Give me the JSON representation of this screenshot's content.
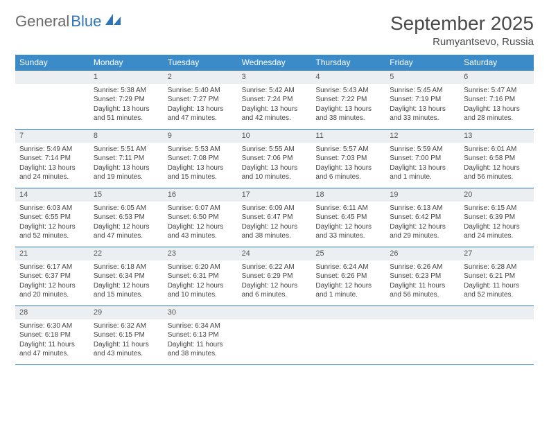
{
  "logo": {
    "general": "General",
    "blue": "Blue"
  },
  "title": "September 2025",
  "location": "Rumyantsevo, Russia",
  "colors": {
    "header_bg": "#3b8bc9",
    "grid_border": "#2f75b5",
    "daynum_bg": "#eceff2",
    "text": "#444444"
  },
  "weekdays": [
    "Sunday",
    "Monday",
    "Tuesday",
    "Wednesday",
    "Thursday",
    "Friday",
    "Saturday"
  ],
  "weeks": [
    [
      null,
      {
        "n": "1",
        "sr": "Sunrise: 5:38 AM",
        "ss": "Sunset: 7:29 PM",
        "dl": "Daylight: 13 hours and 51 minutes."
      },
      {
        "n": "2",
        "sr": "Sunrise: 5:40 AM",
        "ss": "Sunset: 7:27 PM",
        "dl": "Daylight: 13 hours and 47 minutes."
      },
      {
        "n": "3",
        "sr": "Sunrise: 5:42 AM",
        "ss": "Sunset: 7:24 PM",
        "dl": "Daylight: 13 hours and 42 minutes."
      },
      {
        "n": "4",
        "sr": "Sunrise: 5:43 AM",
        "ss": "Sunset: 7:22 PM",
        "dl": "Daylight: 13 hours and 38 minutes."
      },
      {
        "n": "5",
        "sr": "Sunrise: 5:45 AM",
        "ss": "Sunset: 7:19 PM",
        "dl": "Daylight: 13 hours and 33 minutes."
      },
      {
        "n": "6",
        "sr": "Sunrise: 5:47 AM",
        "ss": "Sunset: 7:16 PM",
        "dl": "Daylight: 13 hours and 28 minutes."
      }
    ],
    [
      {
        "n": "7",
        "sr": "Sunrise: 5:49 AM",
        "ss": "Sunset: 7:14 PM",
        "dl": "Daylight: 13 hours and 24 minutes."
      },
      {
        "n": "8",
        "sr": "Sunrise: 5:51 AM",
        "ss": "Sunset: 7:11 PM",
        "dl": "Daylight: 13 hours and 19 minutes."
      },
      {
        "n": "9",
        "sr": "Sunrise: 5:53 AM",
        "ss": "Sunset: 7:08 PM",
        "dl": "Daylight: 13 hours and 15 minutes."
      },
      {
        "n": "10",
        "sr": "Sunrise: 5:55 AM",
        "ss": "Sunset: 7:06 PM",
        "dl": "Daylight: 13 hours and 10 minutes."
      },
      {
        "n": "11",
        "sr": "Sunrise: 5:57 AM",
        "ss": "Sunset: 7:03 PM",
        "dl": "Daylight: 13 hours and 6 minutes."
      },
      {
        "n": "12",
        "sr": "Sunrise: 5:59 AM",
        "ss": "Sunset: 7:00 PM",
        "dl": "Daylight: 13 hours and 1 minute."
      },
      {
        "n": "13",
        "sr": "Sunrise: 6:01 AM",
        "ss": "Sunset: 6:58 PM",
        "dl": "Daylight: 12 hours and 56 minutes."
      }
    ],
    [
      {
        "n": "14",
        "sr": "Sunrise: 6:03 AM",
        "ss": "Sunset: 6:55 PM",
        "dl": "Daylight: 12 hours and 52 minutes."
      },
      {
        "n": "15",
        "sr": "Sunrise: 6:05 AM",
        "ss": "Sunset: 6:53 PM",
        "dl": "Daylight: 12 hours and 47 minutes."
      },
      {
        "n": "16",
        "sr": "Sunrise: 6:07 AM",
        "ss": "Sunset: 6:50 PM",
        "dl": "Daylight: 12 hours and 43 minutes."
      },
      {
        "n": "17",
        "sr": "Sunrise: 6:09 AM",
        "ss": "Sunset: 6:47 PM",
        "dl": "Daylight: 12 hours and 38 minutes."
      },
      {
        "n": "18",
        "sr": "Sunrise: 6:11 AM",
        "ss": "Sunset: 6:45 PM",
        "dl": "Daylight: 12 hours and 33 minutes."
      },
      {
        "n": "19",
        "sr": "Sunrise: 6:13 AM",
        "ss": "Sunset: 6:42 PM",
        "dl": "Daylight: 12 hours and 29 minutes."
      },
      {
        "n": "20",
        "sr": "Sunrise: 6:15 AM",
        "ss": "Sunset: 6:39 PM",
        "dl": "Daylight: 12 hours and 24 minutes."
      }
    ],
    [
      {
        "n": "21",
        "sr": "Sunrise: 6:17 AM",
        "ss": "Sunset: 6:37 PM",
        "dl": "Daylight: 12 hours and 20 minutes."
      },
      {
        "n": "22",
        "sr": "Sunrise: 6:18 AM",
        "ss": "Sunset: 6:34 PM",
        "dl": "Daylight: 12 hours and 15 minutes."
      },
      {
        "n": "23",
        "sr": "Sunrise: 6:20 AM",
        "ss": "Sunset: 6:31 PM",
        "dl": "Daylight: 12 hours and 10 minutes."
      },
      {
        "n": "24",
        "sr": "Sunrise: 6:22 AM",
        "ss": "Sunset: 6:29 PM",
        "dl": "Daylight: 12 hours and 6 minutes."
      },
      {
        "n": "25",
        "sr": "Sunrise: 6:24 AM",
        "ss": "Sunset: 6:26 PM",
        "dl": "Daylight: 12 hours and 1 minute."
      },
      {
        "n": "26",
        "sr": "Sunrise: 6:26 AM",
        "ss": "Sunset: 6:23 PM",
        "dl": "Daylight: 11 hours and 56 minutes."
      },
      {
        "n": "27",
        "sr": "Sunrise: 6:28 AM",
        "ss": "Sunset: 6:21 PM",
        "dl": "Daylight: 11 hours and 52 minutes."
      }
    ],
    [
      {
        "n": "28",
        "sr": "Sunrise: 6:30 AM",
        "ss": "Sunset: 6:18 PM",
        "dl": "Daylight: 11 hours and 47 minutes."
      },
      {
        "n": "29",
        "sr": "Sunrise: 6:32 AM",
        "ss": "Sunset: 6:15 PM",
        "dl": "Daylight: 11 hours and 43 minutes."
      },
      {
        "n": "30",
        "sr": "Sunrise: 6:34 AM",
        "ss": "Sunset: 6:13 PM",
        "dl": "Daylight: 11 hours and 38 minutes."
      },
      null,
      null,
      null,
      null
    ]
  ]
}
